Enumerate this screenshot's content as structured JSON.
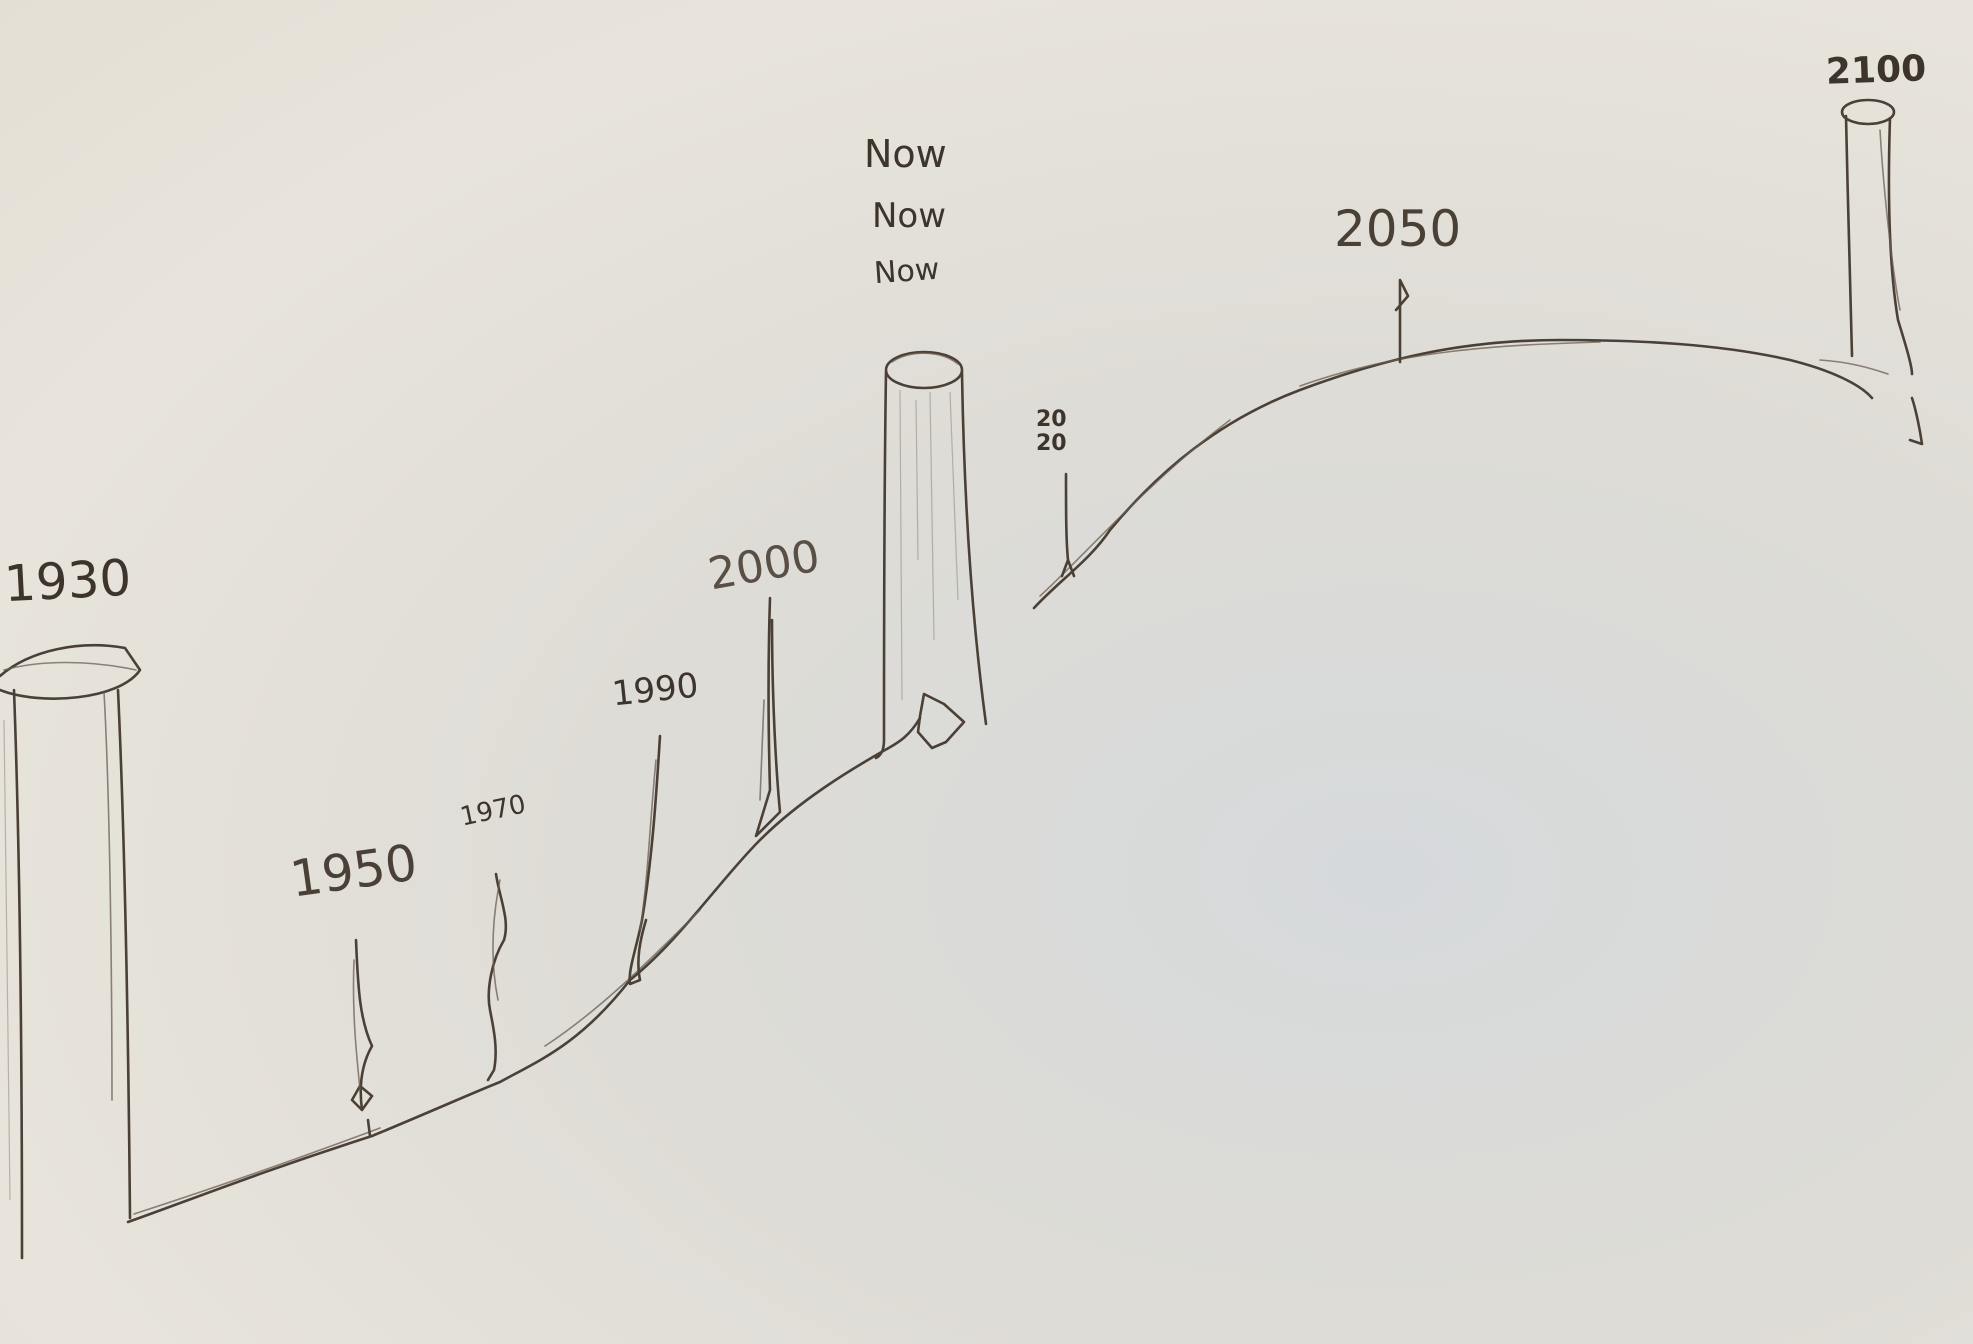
{
  "labels": {
    "y1930": "1930",
    "y1950": "1950",
    "y1970": "1970",
    "y1990": "1990",
    "y2000": "2000",
    "now_1": "Now",
    "now_2": "Now",
    "now_3": "Now",
    "y2020_top": "20",
    "y2020_bottom": "20",
    "y2050": "2050",
    "y2100": "2100"
  },
  "colors": {
    "paper": "#e9e6de",
    "pencil": "#4a4036"
  }
}
